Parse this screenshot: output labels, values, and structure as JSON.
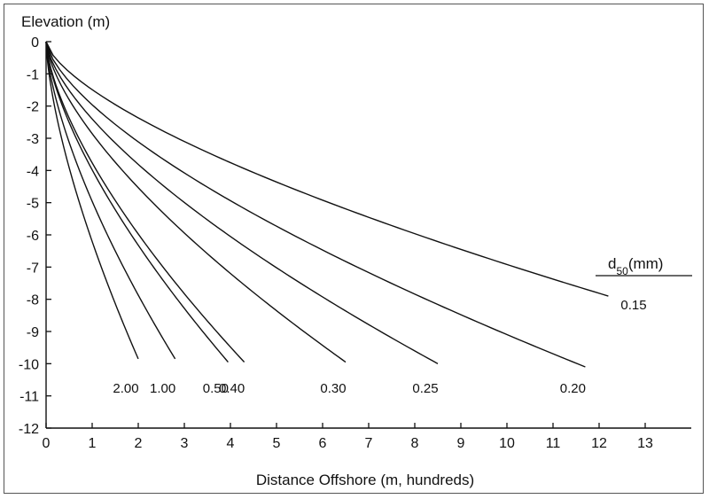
{
  "chart_data": {
    "type": "line",
    "title": "",
    "ylabel": "Elevation (m)",
    "xlabel": "Distance Offshore (m, hundreds)",
    "xlim": [
      0,
      14
    ],
    "ylim": [
      -12,
      0
    ],
    "x_ticks": [
      "0",
      "1",
      "2",
      "3",
      "4",
      "5",
      "6",
      "7",
      "8",
      "9",
      "10",
      "11",
      "12",
      "13"
    ],
    "y_ticks": [
      "0",
      "-1",
      "-2",
      "-3",
      "-4",
      "-5",
      "-6",
      "-7",
      "-8",
      "-9",
      "-10",
      "-11",
      "-12"
    ],
    "legend_title": "d50 (mm)",
    "legend_title_main": "d",
    "legend_title_sub": "50",
    "legend_title_unit": "(mm)",
    "grid": false,
    "series": [
      {
        "name": "0.15",
        "end_x": 12.2,
        "end_y": -7.9
      },
      {
        "name": "0.20",
        "end_x": 11.7,
        "end_y": -10.1
      },
      {
        "name": "0.25",
        "end_x": 8.5,
        "end_y": -10.0
      },
      {
        "name": "0.30",
        "end_x": 6.5,
        "end_y": -9.95
      },
      {
        "name": "0.40",
        "end_x": 4.3,
        "end_y": -9.95
      },
      {
        "name": "0.50",
        "end_x": 3.95,
        "end_y": -9.95
      },
      {
        "name": "1.00",
        "end_x": 2.8,
        "end_y": -9.85
      },
      {
        "name": "2.00",
        "end_x": 2.0,
        "end_y": -9.85
      }
    ]
  }
}
